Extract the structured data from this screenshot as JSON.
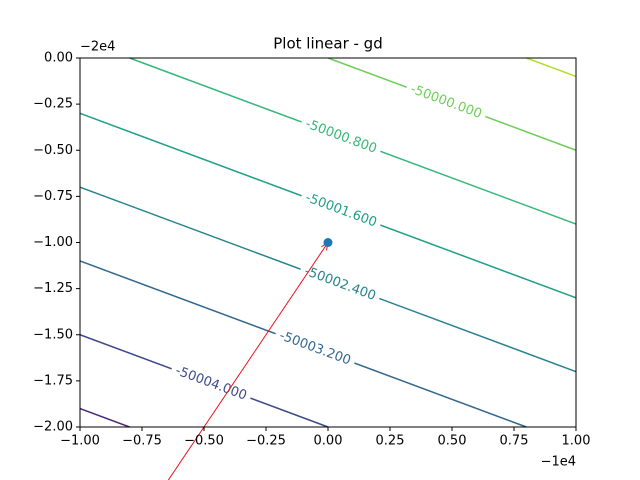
{
  "chart_data": {
    "type": "contour",
    "title": "Plot linear - gd",
    "xlim": [
      -1,
      1
    ],
    "ylim": [
      -2,
      0
    ],
    "xticks": [
      {
        "value": -1,
        "label": "−1.00"
      },
      {
        "value": -0.75,
        "label": "−0.75"
      },
      {
        "value": -0.5,
        "label": "−0.50"
      },
      {
        "value": -0.25,
        "label": "−0.25"
      },
      {
        "value": 0,
        "label": "0.00"
      },
      {
        "value": 0.25,
        "label": "0.25"
      },
      {
        "value": 0.5,
        "label": "0.50"
      },
      {
        "value": 0.75,
        "label": "0.75"
      },
      {
        "value": 1,
        "label": "1.00"
      }
    ],
    "yticks": [
      {
        "value": 0,
        "label": "0.00"
      },
      {
        "value": -0.25,
        "label": "−0.25"
      },
      {
        "value": -0.5,
        "label": "−0.50"
      },
      {
        "value": -0.75,
        "label": "−0.75"
      },
      {
        "value": -1,
        "label": "−1.00"
      },
      {
        "value": -1.25,
        "label": "−1.25"
      },
      {
        "value": -1.5,
        "label": "−1.50"
      },
      {
        "value": -1.75,
        "label": "−1.75"
      },
      {
        "value": -2,
        "label": "−2.00"
      }
    ],
    "x_offset_label": "−1e4",
    "y_offset_label": "−2e4",
    "contours": [
      {
        "level": -50004.8,
        "color": "#482878",
        "x": [
          -1,
          -0.8
        ],
        "y": [
          -1.9,
          -2
        ]
      },
      {
        "level": -50004.0,
        "label": "-50004.000",
        "color": "#3e4989",
        "x": [
          -1,
          0
        ],
        "y": [
          -1.5,
          -2
        ]
      },
      {
        "level": -50003.2,
        "label": "-50003.200",
        "color": "#31688e",
        "x": [
          -1,
          0.8
        ],
        "y": [
          -1.1,
          -2
        ]
      },
      {
        "level": -50002.4,
        "label": "-50002.400",
        "color": "#26828e",
        "x": [
          -1,
          1
        ],
        "y": [
          -0.7,
          -1.7
        ]
      },
      {
        "level": -50001.6,
        "label": "-50001.600",
        "color": "#1f9e89",
        "x": [
          -1,
          1
        ],
        "y": [
          -0.3,
          -1.3
        ]
      },
      {
        "level": -50000.8,
        "label": "-50000.800",
        "color": "#35b779",
        "x": [
          -0.8,
          1
        ],
        "y": [
          0,
          -0.9
        ]
      },
      {
        "level": -50000.0,
        "label": "-50000.000",
        "color": "#6ece58",
        "x": [
          0,
          1
        ],
        "y": [
          0,
          -0.5
        ]
      },
      {
        "level": -49999.2,
        "color": "#b5de2b",
        "x": [
          0.8,
          1
        ],
        "y": [
          0,
          -0.1
        ]
      }
    ],
    "point": {
      "x": 0,
      "y": -1,
      "color": "#1f77b4"
    },
    "arrow": {
      "x": [
        -0.645,
        0
      ],
      "y": [
        -2.29,
        -1
      ],
      "color": "#e8141c"
    }
  }
}
